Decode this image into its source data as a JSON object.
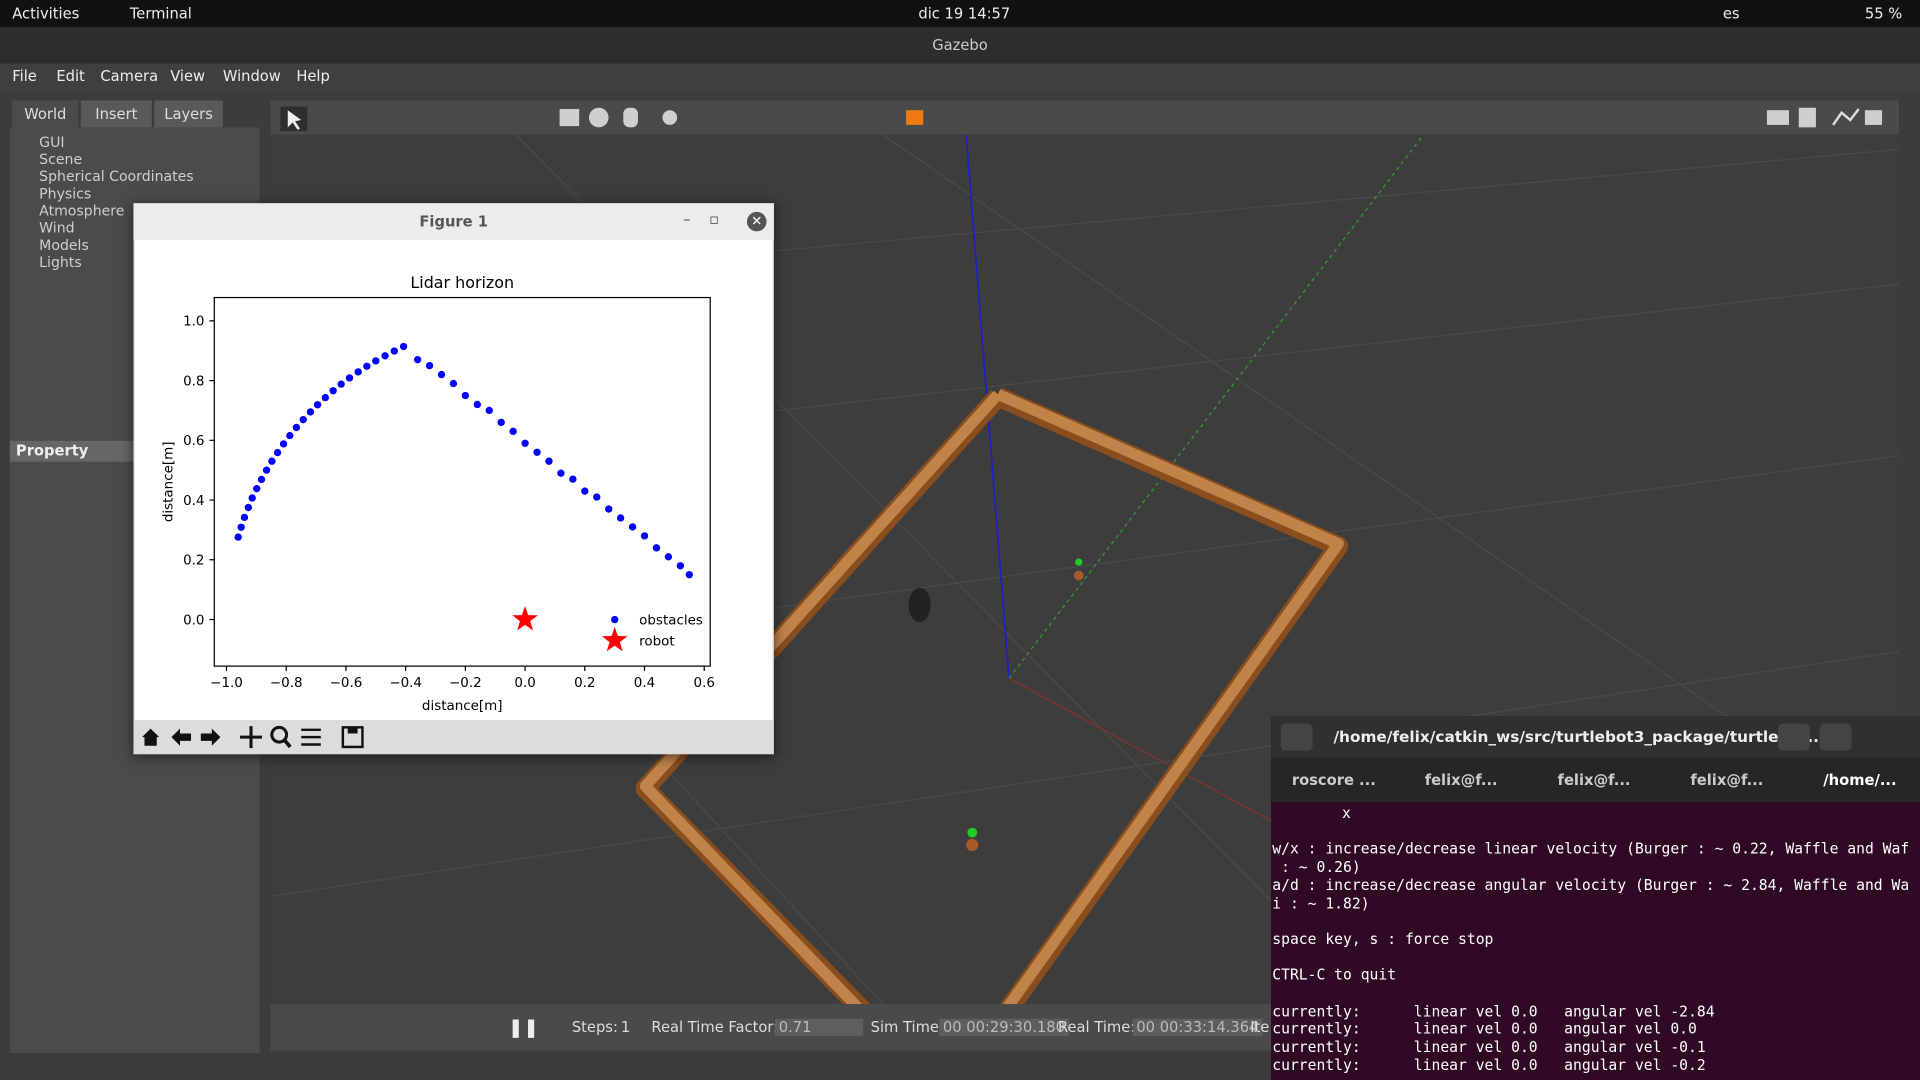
{
  "topbar": {
    "activities": "Activities",
    "app": "Terminal",
    "clock": "dic 19  14:57",
    "lang": "es",
    "battery": "55 %"
  },
  "gazebo": {
    "title": "Gazebo",
    "menu": [
      "File",
      "Edit",
      "Camera",
      "View",
      "Window",
      "Help"
    ],
    "tabs": [
      "World",
      "Insert",
      "Layers"
    ],
    "tree": [
      "GUI",
      "Scene",
      "Spherical Coordinates",
      "Physics",
      "Atmosphere",
      "Wind",
      "Models",
      "Lights"
    ],
    "property": "Property",
    "status": {
      "steps_label": "Steps:",
      "steps": "1",
      "rtf_label": "Real Time Factor:",
      "rtf": "0.71",
      "sim_label": "Sim Time:",
      "sim": "00 00:29:30.180",
      "real_label": "Real Time:",
      "real": "00 00:33:14.364",
      "iter": "Ite"
    }
  },
  "figure": {
    "window_title": "Figure 1",
    "chart_data": {
      "type": "scatter",
      "title": "Lidar horizon",
      "xlabel": "distance[m]",
      "ylabel": "distance[m]",
      "xlim": [
        -1.041,
        0.62
      ],
      "ylim": [
        -0.156,
        1.078
      ],
      "xticks": [
        {
          "value": -1.0,
          "label": "−1.0"
        },
        {
          "value": -0.8,
          "label": "−0.8"
        },
        {
          "value": -0.6,
          "label": "−0.6"
        },
        {
          "value": -0.4,
          "label": "−0.4"
        },
        {
          "value": -0.2,
          "label": "−0.2"
        },
        {
          "value": 0,
          "label": "0.0"
        },
        {
          "value": 0.2,
          "label": "0.2"
        },
        {
          "value": 0.4,
          "label": "0.4"
        },
        {
          "value": 0.6,
          "label": "0.6"
        }
      ],
      "yticks": [
        {
          "value": 0,
          "label": "0.0"
        },
        {
          "value": 0.2,
          "label": "0.2"
        },
        {
          "value": 0.4,
          "label": "0.4"
        },
        {
          "value": 0.6,
          "label": "0.6"
        },
        {
          "value": 0.8,
          "label": "0.8"
        },
        {
          "value": 1.0,
          "label": "1.0"
        }
      ],
      "grid": false,
      "legend": "lower right",
      "series": [
        {
          "name": "obstacles",
          "color": "#0000ff",
          "marker": "circle",
          "x": [
            -0.961,
            -0.951,
            -0.94,
            -0.927,
            -0.914,
            -0.899,
            -0.883,
            -0.866,
            -0.848,
            -0.829,
            -0.809,
            -0.788,
            -0.766,
            -0.743,
            -0.719,
            -0.695,
            -0.669,
            -0.643,
            -0.616,
            -0.588,
            -0.559,
            -0.53,
            -0.5,
            -0.469,
            -0.438,
            -0.407,
            -0.36,
            -0.32,
            -0.28,
            -0.24,
            -0.2,
            -0.16,
            -0.12,
            -0.08,
            -0.04,
            0.0,
            0.04,
            0.08,
            0.12,
            0.16,
            0.2,
            0.24,
            0.28,
            0.32,
            0.36,
            0.4,
            0.44,
            0.48,
            0.52,
            0.55
          ],
          "y": [
            0.276,
            0.309,
            0.342,
            0.375,
            0.407,
            0.438,
            0.469,
            0.5,
            0.53,
            0.559,
            0.588,
            0.616,
            0.643,
            0.669,
            0.695,
            0.719,
            0.743,
            0.766,
            0.788,
            0.809,
            0.829,
            0.848,
            0.866,
            0.883,
            0.899,
            0.914,
            0.87,
            0.85,
            0.82,
            0.79,
            0.75,
            0.72,
            0.7,
            0.66,
            0.63,
            0.59,
            0.56,
            0.53,
            0.49,
            0.47,
            0.43,
            0.41,
            0.37,
            0.34,
            0.31,
            0.28,
            0.24,
            0.21,
            0.18,
            0.15
          ]
        },
        {
          "name": "robot",
          "color": "#ff0000",
          "marker": "star",
          "x": [
            0.0
          ],
          "y": [
            0.0
          ]
        }
      ]
    }
  },
  "terminal": {
    "title": "/home/felix/catkin_ws/src/turtlebot3_package/turtlebot...",
    "tabs": [
      "roscore ...",
      "felix@f...",
      "felix@f...",
      "felix@f...",
      "/home/..."
    ],
    "lines": [
      "x",
      "w/x : increase/decrease linear velocity (Burger : ~ 0.22, Waffle and Waf",
      " : ~ 0.26)",
      "a/d : increase/decrease angular velocity (Burger : ~ 2.84, Waffle and Wa",
      "i : ~ 1.82)",
      "space key, s : force stop",
      "CTRL-C to quit",
      "currently:      linear vel 0.0   angular vel -2.84",
      "currently:      linear vel 0.0   angular vel 0.0",
      "currently:      linear vel 0.0   angular vel -0.1",
      "currently:      linear vel 0.0   angular vel -0.2"
    ]
  }
}
